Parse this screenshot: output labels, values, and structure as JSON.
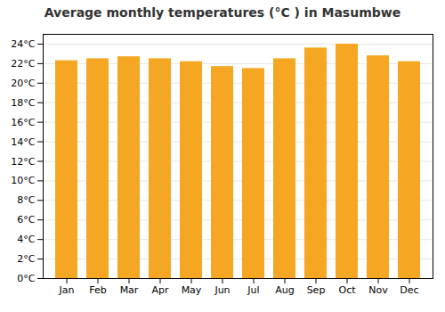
{
  "chart_data": {
    "type": "bar",
    "title": "Average monthly temperatures (°C ) in Masumbwe",
    "categories": [
      "Jan",
      "Feb",
      "Mar",
      "Apr",
      "May",
      "Jun",
      "Jul",
      "Aug",
      "Sep",
      "Oct",
      "Nov",
      "Dec"
    ],
    "values": [
      22.3,
      22.5,
      22.7,
      22.5,
      22.2,
      21.7,
      21.5,
      22.5,
      23.6,
      24.0,
      22.8,
      22.2
    ],
    "color": "#F5A623",
    "ylim": [
      0,
      25
    ],
    "yticks": [
      {
        "value": 0,
        "label": "0°C"
      },
      {
        "value": 2,
        "label": "2°C"
      },
      {
        "value": 4,
        "label": "4°C"
      },
      {
        "value": 6,
        "label": "6°C"
      },
      {
        "value": 8,
        "label": "8°C"
      },
      {
        "value": 10,
        "label": "10°C"
      },
      {
        "value": 12,
        "label": "12°C"
      },
      {
        "value": 14,
        "label": "14°C"
      },
      {
        "value": 16,
        "label": "16°C"
      },
      {
        "value": 18,
        "label": "18°C"
      },
      {
        "value": 20,
        "label": "20°C"
      },
      {
        "value": 22,
        "label": "22°C"
      },
      {
        "value": 24,
        "label": "24°C"
      }
    ],
    "grid": true
  }
}
